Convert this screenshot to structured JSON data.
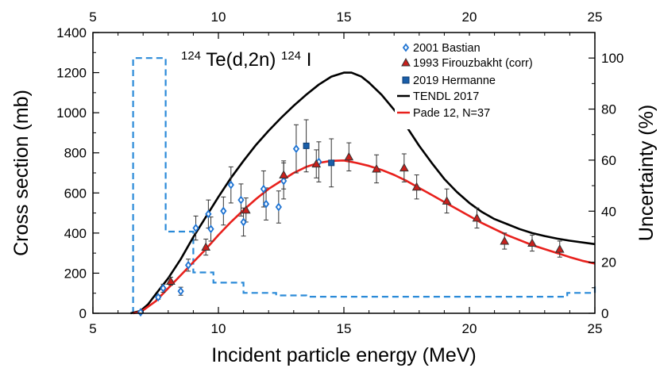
{
  "chart_data": {
    "type": "scatter",
    "title_parts": {
      "mass1": "124",
      "target": "Te(d,2n)",
      "mass2": "124",
      "product": "I"
    },
    "xlabel": "Incident particle energy (MeV)",
    "ylabel": "Cross section (mb)",
    "y2label": "Uncertainty (%)",
    "xlim": [
      5,
      25
    ],
    "ylim": [
      0,
      1400
    ],
    "y2lim": [
      0,
      110
    ],
    "x_ticks": [
      "5",
      "10",
      "15",
      "20",
      "25"
    ],
    "y_ticks": [
      "0",
      "200",
      "400",
      "600",
      "800",
      "1000",
      "1200",
      "1400"
    ],
    "y2_ticks": [
      "0",
      "20",
      "40",
      "60",
      "80",
      "100"
    ],
    "series": [
      {
        "name": "2001 Bastian",
        "marker": "diamond",
        "color": "#1e73d2",
        "points": [
          {
            "x": 6.9,
            "y": 5,
            "err": 5
          },
          {
            "x": 7.6,
            "y": 80,
            "err": 10
          },
          {
            "x": 7.8,
            "y": 125,
            "err": 20
          },
          {
            "x": 8.5,
            "y": 110,
            "err": 20
          },
          {
            "x": 8.8,
            "y": 240,
            "err": 30
          },
          {
            "x": 9.1,
            "y": 425,
            "err": 60
          },
          {
            "x": 9.6,
            "y": 495,
            "err": 70
          },
          {
            "x": 9.7,
            "y": 420,
            "err": 60
          },
          {
            "x": 10.2,
            "y": 510,
            "err": 70
          },
          {
            "x": 10.5,
            "y": 640,
            "err": 90
          },
          {
            "x": 10.9,
            "y": 565,
            "err": 80
          },
          {
            "x": 11.0,
            "y": 455,
            "err": 70
          },
          {
            "x": 11.8,
            "y": 620,
            "err": 90
          },
          {
            "x": 11.9,
            "y": 545,
            "err": 80
          },
          {
            "x": 12.4,
            "y": 530,
            "err": 80
          },
          {
            "x": 12.6,
            "y": 660,
            "err": 90
          },
          {
            "x": 13.1,
            "y": 820,
            "err": 120
          },
          {
            "x": 14.0,
            "y": 755,
            "err": 100
          }
        ]
      },
      {
        "name": "1993 Firouzbakht (corr)",
        "marker": "triangle",
        "color": "#c8201c",
        "points": [
          {
            "x": 8.1,
            "y": 160,
            "err": 20
          },
          {
            "x": 9.5,
            "y": 330,
            "err": 40
          },
          {
            "x": 11.1,
            "y": 515,
            "err": 60
          },
          {
            "x": 12.6,
            "y": 690,
            "err": 70
          },
          {
            "x": 13.9,
            "y": 745,
            "err": 70
          },
          {
            "x": 15.2,
            "y": 780,
            "err": 70
          },
          {
            "x": 16.3,
            "y": 720,
            "err": 70
          },
          {
            "x": 17.4,
            "y": 725,
            "err": 70
          },
          {
            "x": 17.9,
            "y": 630,
            "err": 60
          },
          {
            "x": 19.1,
            "y": 560,
            "err": 60
          },
          {
            "x": 20.3,
            "y": 475,
            "err": 50
          },
          {
            "x": 21.4,
            "y": 360,
            "err": 40
          },
          {
            "x": 22.5,
            "y": 350,
            "err": 40
          },
          {
            "x": 23.6,
            "y": 320,
            "err": 40
          }
        ]
      },
      {
        "name": "2019 Hermanne",
        "marker": "square",
        "color": "#1a5ea8",
        "points": [
          {
            "x": 13.5,
            "y": 835,
            "err": 130
          },
          {
            "x": 14.5,
            "y": 750,
            "err": 120
          }
        ]
      },
      {
        "name": "TENDL 2017",
        "type": "line",
        "color": "#000000",
        "points": [
          [
            6.5,
            0
          ],
          [
            6.9,
            12
          ],
          [
            7.2,
            45
          ],
          [
            7.5,
            95
          ],
          [
            8.0,
            175
          ],
          [
            8.5,
            270
          ],
          [
            9.0,
            380
          ],
          [
            9.5,
            480
          ],
          [
            10.0,
            580
          ],
          [
            10.5,
            675
          ],
          [
            11.0,
            760
          ],
          [
            11.5,
            840
          ],
          [
            12.0,
            910
          ],
          [
            12.5,
            975
          ],
          [
            13.0,
            1035
          ],
          [
            13.5,
            1090
          ],
          [
            14.0,
            1140
          ],
          [
            14.5,
            1180
          ],
          [
            15.0,
            1200
          ],
          [
            15.3,
            1200
          ],
          [
            15.7,
            1180
          ],
          [
            16.0,
            1150
          ],
          [
            16.5,
            1090
          ],
          [
            17.0,
            1015
          ],
          [
            17.5,
            930
          ],
          [
            18.0,
            835
          ],
          [
            18.5,
            750
          ],
          [
            19.0,
            670
          ],
          [
            19.5,
            605
          ],
          [
            20.0,
            550
          ],
          [
            20.5,
            505
          ],
          [
            21.0,
            470
          ],
          [
            21.5,
            445
          ],
          [
            22.0,
            420
          ],
          [
            22.5,
            400
          ],
          [
            23.0,
            385
          ],
          [
            23.5,
            372
          ],
          [
            24.0,
            362
          ],
          [
            25.0,
            345
          ]
        ]
      },
      {
        "name": "Pade 12, N=37",
        "type": "line",
        "color": "#e8201c",
        "points": [
          [
            6.6,
            0
          ],
          [
            6.8,
            5
          ],
          [
            7.0,
            15
          ],
          [
            7.5,
            60
          ],
          [
            8.0,
            125
          ],
          [
            8.5,
            190
          ],
          [
            9.0,
            255
          ],
          [
            9.5,
            320
          ],
          [
            10.0,
            390
          ],
          [
            10.5,
            455
          ],
          [
            11.0,
            515
          ],
          [
            11.5,
            570
          ],
          [
            12.0,
            620
          ],
          [
            12.5,
            660
          ],
          [
            13.0,
            700
          ],
          [
            13.5,
            730
          ],
          [
            14.0,
            750
          ],
          [
            14.5,
            760
          ],
          [
            15.0,
            762
          ],
          [
            15.5,
            750
          ],
          [
            16.0,
            735
          ],
          [
            16.5,
            715
          ],
          [
            17.0,
            690
          ],
          [
            17.5,
            660
          ],
          [
            18.0,
            625
          ],
          [
            18.5,
            590
          ],
          [
            19.0,
            555
          ],
          [
            19.5,
            520
          ],
          [
            20.0,
            485
          ],
          [
            20.5,
            450
          ],
          [
            21.0,
            420
          ],
          [
            21.5,
            390
          ],
          [
            22.0,
            365
          ],
          [
            22.5,
            340
          ],
          [
            23.0,
            320
          ],
          [
            23.5,
            300
          ],
          [
            24.0,
            280
          ],
          [
            24.5,
            262
          ],
          [
            25.0,
            248
          ]
        ]
      },
      {
        "name": "Uncertainty (%)",
        "type": "step",
        "axis": "y2",
        "color": "#2a8ad8",
        "points": [
          [
            6.6,
            0
          ],
          [
            6.6,
            100
          ],
          [
            7.9,
            100
          ],
          [
            7.9,
            32
          ],
          [
            9.0,
            32
          ],
          [
            9.0,
            16
          ],
          [
            9.8,
            16
          ],
          [
            9.8,
            12
          ],
          [
            11.0,
            12
          ],
          [
            11.0,
            8
          ],
          [
            12.3,
            8
          ],
          [
            12.3,
            7
          ],
          [
            13.5,
            7
          ],
          [
            13.5,
            6.5
          ],
          [
            23.9,
            6.5
          ],
          [
            23.9,
            8
          ],
          [
            25,
            8
          ],
          [
            25,
            12
          ]
        ]
      }
    ],
    "legend": [
      "2001 Bastian",
      "1993 Firouzbakht (corr)",
      "2019 Hermanne",
      "TENDL 2017",
      "Pade 12, N=37"
    ]
  }
}
